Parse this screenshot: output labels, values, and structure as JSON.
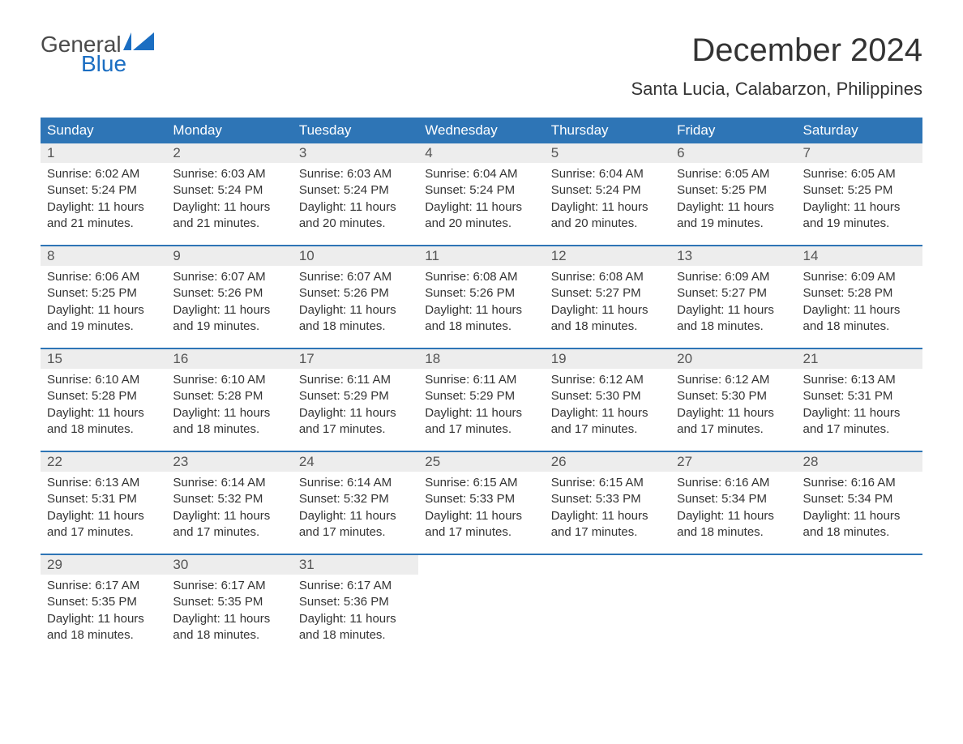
{
  "logo": {
    "text1": "General",
    "text2": "Blue",
    "icon_color": "#1b6ec2",
    "text1_color": "#4a4a4a",
    "text2_color": "#1b6ec2"
  },
  "title": "December 2024",
  "location": "Santa Lucia, Calabarzon, Philippines",
  "colors": {
    "header_bg": "#2e75b6",
    "header_text": "#ffffff",
    "daynum_bg": "#ededed",
    "daynum_text": "#555555",
    "body_text": "#333333",
    "week_border": "#2e75b6",
    "page_bg": "#ffffff"
  },
  "typography": {
    "title_fontsize": 40,
    "location_fontsize": 22,
    "header_fontsize": 17,
    "daynum_fontsize": 17,
    "data_fontsize": 15
  },
  "day_headers": [
    "Sunday",
    "Monday",
    "Tuesday",
    "Wednesday",
    "Thursday",
    "Friday",
    "Saturday"
  ],
  "weeks": [
    [
      {
        "num": "1",
        "sunrise": "Sunrise: 6:02 AM",
        "sunset": "Sunset: 5:24 PM",
        "daylight1": "Daylight: 11 hours",
        "daylight2": "and 21 minutes."
      },
      {
        "num": "2",
        "sunrise": "Sunrise: 6:03 AM",
        "sunset": "Sunset: 5:24 PM",
        "daylight1": "Daylight: 11 hours",
        "daylight2": "and 21 minutes."
      },
      {
        "num": "3",
        "sunrise": "Sunrise: 6:03 AM",
        "sunset": "Sunset: 5:24 PM",
        "daylight1": "Daylight: 11 hours",
        "daylight2": "and 20 minutes."
      },
      {
        "num": "4",
        "sunrise": "Sunrise: 6:04 AM",
        "sunset": "Sunset: 5:24 PM",
        "daylight1": "Daylight: 11 hours",
        "daylight2": "and 20 minutes."
      },
      {
        "num": "5",
        "sunrise": "Sunrise: 6:04 AM",
        "sunset": "Sunset: 5:24 PM",
        "daylight1": "Daylight: 11 hours",
        "daylight2": "and 20 minutes."
      },
      {
        "num": "6",
        "sunrise": "Sunrise: 6:05 AM",
        "sunset": "Sunset: 5:25 PM",
        "daylight1": "Daylight: 11 hours",
        "daylight2": "and 19 minutes."
      },
      {
        "num": "7",
        "sunrise": "Sunrise: 6:05 AM",
        "sunset": "Sunset: 5:25 PM",
        "daylight1": "Daylight: 11 hours",
        "daylight2": "and 19 minutes."
      }
    ],
    [
      {
        "num": "8",
        "sunrise": "Sunrise: 6:06 AM",
        "sunset": "Sunset: 5:25 PM",
        "daylight1": "Daylight: 11 hours",
        "daylight2": "and 19 minutes."
      },
      {
        "num": "9",
        "sunrise": "Sunrise: 6:07 AM",
        "sunset": "Sunset: 5:26 PM",
        "daylight1": "Daylight: 11 hours",
        "daylight2": "and 19 minutes."
      },
      {
        "num": "10",
        "sunrise": "Sunrise: 6:07 AM",
        "sunset": "Sunset: 5:26 PM",
        "daylight1": "Daylight: 11 hours",
        "daylight2": "and 18 minutes."
      },
      {
        "num": "11",
        "sunrise": "Sunrise: 6:08 AM",
        "sunset": "Sunset: 5:26 PM",
        "daylight1": "Daylight: 11 hours",
        "daylight2": "and 18 minutes."
      },
      {
        "num": "12",
        "sunrise": "Sunrise: 6:08 AM",
        "sunset": "Sunset: 5:27 PM",
        "daylight1": "Daylight: 11 hours",
        "daylight2": "and 18 minutes."
      },
      {
        "num": "13",
        "sunrise": "Sunrise: 6:09 AM",
        "sunset": "Sunset: 5:27 PM",
        "daylight1": "Daylight: 11 hours",
        "daylight2": "and 18 minutes."
      },
      {
        "num": "14",
        "sunrise": "Sunrise: 6:09 AM",
        "sunset": "Sunset: 5:28 PM",
        "daylight1": "Daylight: 11 hours",
        "daylight2": "and 18 minutes."
      }
    ],
    [
      {
        "num": "15",
        "sunrise": "Sunrise: 6:10 AM",
        "sunset": "Sunset: 5:28 PM",
        "daylight1": "Daylight: 11 hours",
        "daylight2": "and 18 minutes."
      },
      {
        "num": "16",
        "sunrise": "Sunrise: 6:10 AM",
        "sunset": "Sunset: 5:28 PM",
        "daylight1": "Daylight: 11 hours",
        "daylight2": "and 18 minutes."
      },
      {
        "num": "17",
        "sunrise": "Sunrise: 6:11 AM",
        "sunset": "Sunset: 5:29 PM",
        "daylight1": "Daylight: 11 hours",
        "daylight2": "and 17 minutes."
      },
      {
        "num": "18",
        "sunrise": "Sunrise: 6:11 AM",
        "sunset": "Sunset: 5:29 PM",
        "daylight1": "Daylight: 11 hours",
        "daylight2": "and 17 minutes."
      },
      {
        "num": "19",
        "sunrise": "Sunrise: 6:12 AM",
        "sunset": "Sunset: 5:30 PM",
        "daylight1": "Daylight: 11 hours",
        "daylight2": "and 17 minutes."
      },
      {
        "num": "20",
        "sunrise": "Sunrise: 6:12 AM",
        "sunset": "Sunset: 5:30 PM",
        "daylight1": "Daylight: 11 hours",
        "daylight2": "and 17 minutes."
      },
      {
        "num": "21",
        "sunrise": "Sunrise: 6:13 AM",
        "sunset": "Sunset: 5:31 PM",
        "daylight1": "Daylight: 11 hours",
        "daylight2": "and 17 minutes."
      }
    ],
    [
      {
        "num": "22",
        "sunrise": "Sunrise: 6:13 AM",
        "sunset": "Sunset: 5:31 PM",
        "daylight1": "Daylight: 11 hours",
        "daylight2": "and 17 minutes."
      },
      {
        "num": "23",
        "sunrise": "Sunrise: 6:14 AM",
        "sunset": "Sunset: 5:32 PM",
        "daylight1": "Daylight: 11 hours",
        "daylight2": "and 17 minutes."
      },
      {
        "num": "24",
        "sunrise": "Sunrise: 6:14 AM",
        "sunset": "Sunset: 5:32 PM",
        "daylight1": "Daylight: 11 hours",
        "daylight2": "and 17 minutes."
      },
      {
        "num": "25",
        "sunrise": "Sunrise: 6:15 AM",
        "sunset": "Sunset: 5:33 PM",
        "daylight1": "Daylight: 11 hours",
        "daylight2": "and 17 minutes."
      },
      {
        "num": "26",
        "sunrise": "Sunrise: 6:15 AM",
        "sunset": "Sunset: 5:33 PM",
        "daylight1": "Daylight: 11 hours",
        "daylight2": "and 17 minutes."
      },
      {
        "num": "27",
        "sunrise": "Sunrise: 6:16 AM",
        "sunset": "Sunset: 5:34 PM",
        "daylight1": "Daylight: 11 hours",
        "daylight2": "and 18 minutes."
      },
      {
        "num": "28",
        "sunrise": "Sunrise: 6:16 AM",
        "sunset": "Sunset: 5:34 PM",
        "daylight1": "Daylight: 11 hours",
        "daylight2": "and 18 minutes."
      }
    ],
    [
      {
        "num": "29",
        "sunrise": "Sunrise: 6:17 AM",
        "sunset": "Sunset: 5:35 PM",
        "daylight1": "Daylight: 11 hours",
        "daylight2": "and 18 minutes."
      },
      {
        "num": "30",
        "sunrise": "Sunrise: 6:17 AM",
        "sunset": "Sunset: 5:35 PM",
        "daylight1": "Daylight: 11 hours",
        "daylight2": "and 18 minutes."
      },
      {
        "num": "31",
        "sunrise": "Sunrise: 6:17 AM",
        "sunset": "Sunset: 5:36 PM",
        "daylight1": "Daylight: 11 hours",
        "daylight2": "and 18 minutes."
      },
      null,
      null,
      null,
      null
    ]
  ]
}
